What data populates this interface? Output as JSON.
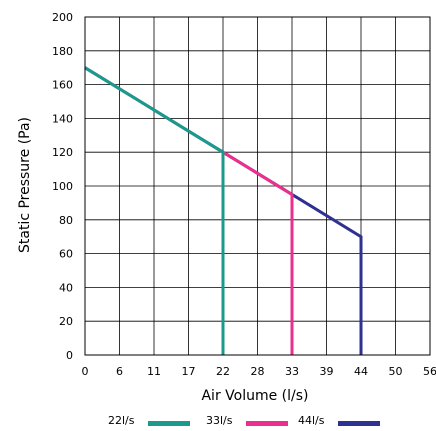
{
  "chart_data": {
    "type": "line",
    "title": "",
    "xlabel": "Air Volume (l/s)",
    "ylabel": "Static Pressure (Pa)",
    "xlim": [
      0,
      56
    ],
    "ylim": [
      0,
      200
    ],
    "x_ticks": [
      "0",
      "6",
      "11",
      "17",
      "22",
      "28",
      "33",
      "39",
      "44",
      "50",
      "56"
    ],
    "x_tick_values": [
      0,
      5.6,
      11.2,
      16.8,
      22.4,
      28,
      33.6,
      39.2,
      44.8,
      50.4,
      56
    ],
    "y_ticks": [
      "0",
      "20",
      "40",
      "60",
      "80",
      "100",
      "120",
      "140",
      "160",
      "180",
      "200"
    ],
    "y_tick_values": [
      0,
      20,
      40,
      60,
      80,
      100,
      120,
      140,
      160,
      180,
      200
    ],
    "grid": true,
    "legend_position": "bottom",
    "series": [
      {
        "name": "44l/s",
        "color": "#2E3192",
        "points": [
          [
            0,
            170
          ],
          [
            22.4,
            120
          ],
          [
            33.6,
            95
          ],
          [
            44.8,
            70
          ],
          [
            44.8,
            0
          ]
        ]
      },
      {
        "name": "33l/s",
        "color": "#EC2F8E",
        "points": [
          [
            22.4,
            120
          ],
          [
            33.6,
            95
          ],
          [
            33.6,
            0
          ]
        ]
      },
      {
        "name": "22l/s",
        "color": "#1B9A8B",
        "points": [
          [
            0,
            170
          ],
          [
            22.4,
            120
          ],
          [
            22.4,
            0
          ]
        ]
      }
    ],
    "legend": [
      {
        "name": "22l/s",
        "color": "#1B9A8B"
      },
      {
        "name": "33l/s",
        "color": "#EC2F8E"
      },
      {
        "name": "44l/s",
        "color": "#2E3192"
      }
    ]
  }
}
